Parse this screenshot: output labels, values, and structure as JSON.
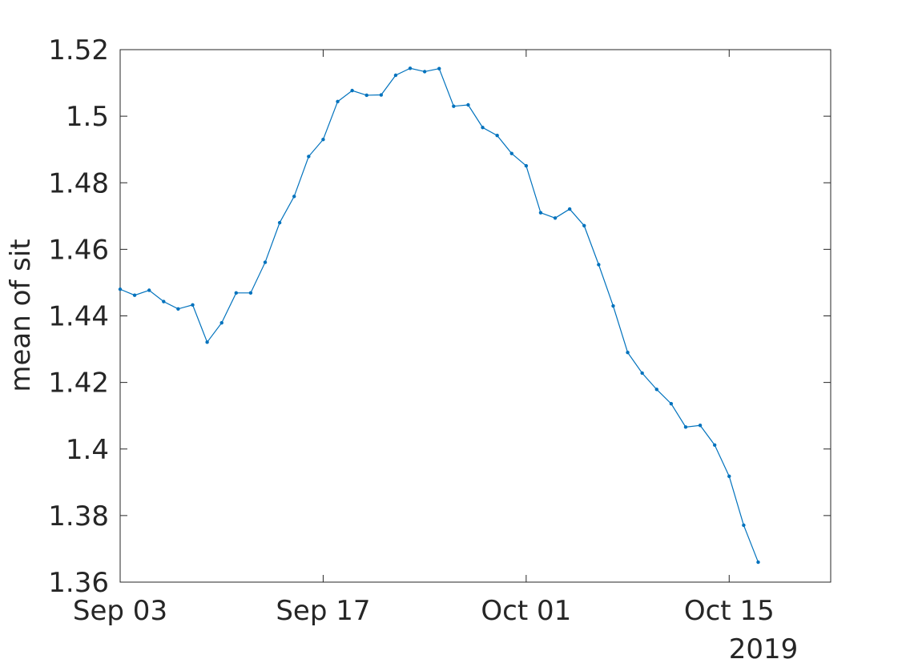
{
  "chart_data": {
    "type": "line",
    "title": "",
    "xlabel": "",
    "ylabel": "mean of sit",
    "x_secondary_label": "2019",
    "x_start": "2019-09-03",
    "xlim": [
      "2019-09-03",
      "2019-10-22"
    ],
    "ylim": [
      1.36,
      1.52
    ],
    "grid": false,
    "x_ticks": [
      {
        "date": "2019-09-03",
        "label": "Sep 03"
      },
      {
        "date": "2019-09-17",
        "label": "Sep 17"
      },
      {
        "date": "2019-10-01",
        "label": "Oct 01"
      },
      {
        "date": "2019-10-15",
        "label": "Oct 15"
      }
    ],
    "y_ticks": [
      1.36,
      1.38,
      1.4,
      1.42,
      1.44,
      1.46,
      1.48,
      1.5,
      1.52
    ],
    "y_tick_labels": [
      "1.36",
      "1.38",
      "1.4",
      "1.42",
      "1.44",
      "1.46",
      "1.48",
      "1.5",
      "1.52"
    ],
    "series": [
      {
        "color": "#0072bd",
        "x": [
          "2019-09-03",
          "2019-09-04",
          "2019-09-05",
          "2019-09-06",
          "2019-09-07",
          "2019-09-08",
          "2019-09-09",
          "2019-09-10",
          "2019-09-11",
          "2019-09-12",
          "2019-09-13",
          "2019-09-14",
          "2019-09-15",
          "2019-09-16",
          "2019-09-17",
          "2019-09-18",
          "2019-09-19",
          "2019-09-20",
          "2019-09-21",
          "2019-09-22",
          "2019-09-23",
          "2019-09-24",
          "2019-09-25",
          "2019-09-26",
          "2019-09-27",
          "2019-09-28",
          "2019-09-29",
          "2019-09-30",
          "2019-10-01",
          "2019-10-02",
          "2019-10-03",
          "2019-10-04",
          "2019-10-05",
          "2019-10-06",
          "2019-10-07",
          "2019-10-08",
          "2019-10-09",
          "2019-10-10",
          "2019-10-11",
          "2019-10-12",
          "2019-10-13",
          "2019-10-14",
          "2019-10-15",
          "2019-10-16",
          "2019-10-17"
        ],
        "values": [
          1.448,
          1.4462,
          1.4477,
          1.4443,
          1.4421,
          1.4433,
          1.4321,
          1.4379,
          1.4469,
          1.4469,
          1.4561,
          1.468,
          1.4759,
          1.4879,
          1.493,
          1.5044,
          1.5077,
          1.5063,
          1.5064,
          1.5123,
          1.5144,
          1.5134,
          1.5143,
          1.503,
          1.5034,
          1.4966,
          1.4942,
          1.4888,
          1.4851,
          1.471,
          1.4694,
          1.4721,
          1.4671,
          1.4554,
          1.443,
          1.429,
          1.4228,
          1.4179,
          1.4136,
          1.4066,
          1.4071,
          1.4012,
          1.3918,
          1.3771,
          1.366
        ]
      }
    ]
  }
}
